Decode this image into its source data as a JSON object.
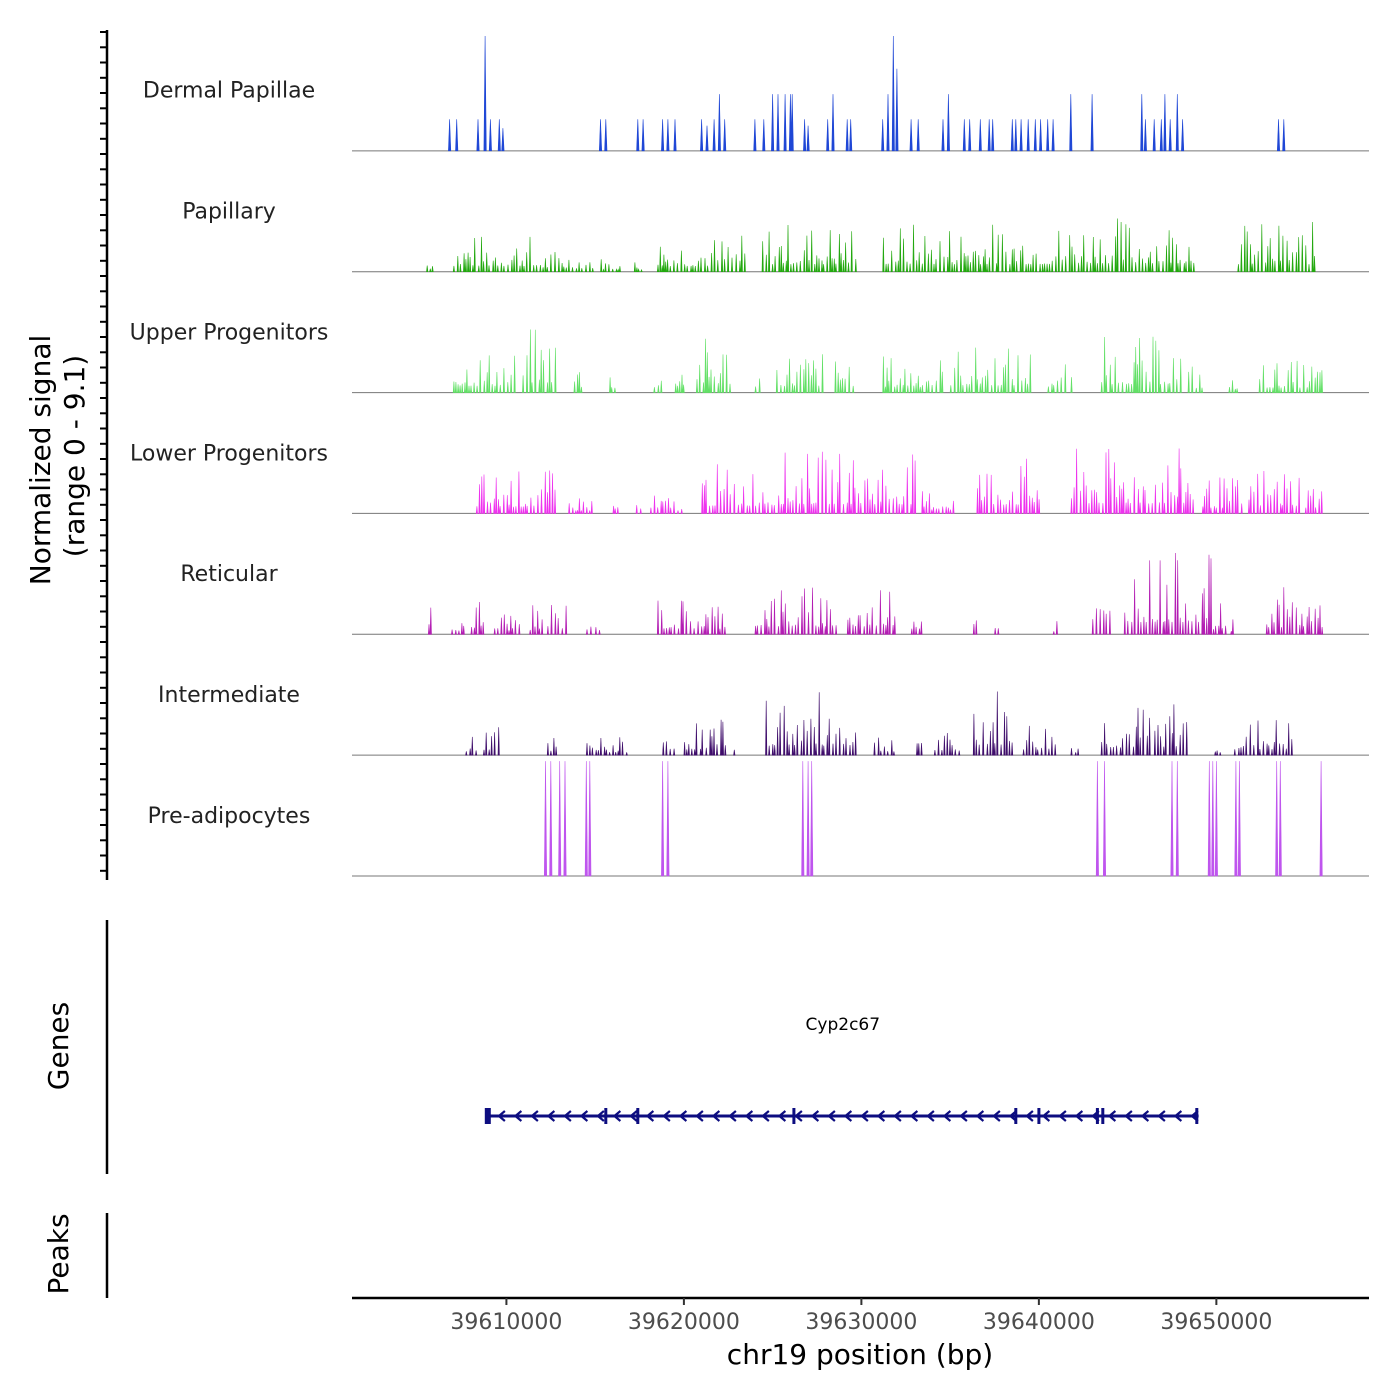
{
  "chart_data": {
    "type": "area",
    "title": "",
    "ylabel_line1": "Normalized signal",
    "ylabel_line2": "(range 0 - 9.1)",
    "y_range": [
      0,
      9.1
    ],
    "xlabel": "chr19 position (bp)",
    "x_range": [
      39601300,
      39658600
    ],
    "x_ticks": [
      39610000,
      39620000,
      39630000,
      39640000,
      39650000
    ],
    "x_tick_labels": [
      "39610000",
      "39620000",
      "39630000",
      "39640000",
      "39650000"
    ],
    "tracks": [
      {
        "name": "Dermal Papillae",
        "color": "#1f47d6",
        "peaks": [
          [
            39606800,
            2.5
          ],
          [
            39607200,
            2.5
          ],
          [
            39608400,
            2.5
          ],
          [
            39608800,
            9.1
          ],
          [
            39609100,
            2.5
          ],
          [
            39609600,
            2.5
          ],
          [
            39609800,
            1.8
          ],
          [
            39615300,
            2.5
          ],
          [
            39615600,
            2.5
          ],
          [
            39617400,
            2.5
          ],
          [
            39617700,
            2.5
          ],
          [
            39618800,
            2.5
          ],
          [
            39619100,
            2.5
          ],
          [
            39619500,
            2.5
          ],
          [
            39621000,
            2.5
          ],
          [
            39621300,
            2.0
          ],
          [
            39621700,
            2.5
          ],
          [
            39622000,
            4.5
          ],
          [
            39622300,
            2.5
          ],
          [
            39624000,
            2.5
          ],
          [
            39624500,
            2.5
          ],
          [
            39625000,
            4.5
          ],
          [
            39625300,
            4.5
          ],
          [
            39625700,
            4.5
          ],
          [
            39626000,
            4.5
          ],
          [
            39626100,
            4.5
          ],
          [
            39626800,
            2.5
          ],
          [
            39627000,
            2.0
          ],
          [
            39628100,
            2.5
          ],
          [
            39628400,
            4.5
          ],
          [
            39629200,
            2.5
          ],
          [
            39629400,
            2.5
          ],
          [
            39631200,
            2.5
          ],
          [
            39631500,
            4.5
          ],
          [
            39631800,
            9.1
          ],
          [
            39632000,
            6.5
          ],
          [
            39632800,
            2.5
          ],
          [
            39633200,
            2.5
          ],
          [
            39634600,
            2.5
          ],
          [
            39634900,
            4.5
          ],
          [
            39635800,
            2.5
          ],
          [
            39636100,
            2.5
          ],
          [
            39636700,
            2.5
          ],
          [
            39637200,
            2.5
          ],
          [
            39637400,
            2.5
          ],
          [
            39638500,
            2.5
          ],
          [
            39638700,
            2.5
          ],
          [
            39639000,
            2.5
          ],
          [
            39639400,
            2.5
          ],
          [
            39639800,
            2.5
          ],
          [
            39640100,
            2.5
          ],
          [
            39640500,
            2.5
          ],
          [
            39640800,
            2.5
          ],
          [
            39641800,
            4.5
          ],
          [
            39643000,
            4.5
          ],
          [
            39645800,
            4.5
          ],
          [
            39646000,
            2.5
          ],
          [
            39646500,
            2.5
          ],
          [
            39646900,
            2.5
          ],
          [
            39647100,
            4.5
          ],
          [
            39647400,
            2.5
          ],
          [
            39647800,
            4.5
          ],
          [
            39648100,
            2.5
          ],
          [
            39653500,
            2.5
          ],
          [
            39653800,
            2.5
          ]
        ]
      },
      {
        "name": "Papillary",
        "color": "#22a80e",
        "density": [
          [
            39605500,
            39605900,
            1.5
          ],
          [
            39607000,
            39611300,
            3.0
          ],
          [
            39611500,
            39615000,
            1.8
          ],
          [
            39615300,
            39616400,
            1.2
          ],
          [
            39617200,
            39617700,
            1.0
          ],
          [
            39618500,
            39623500,
            3.0
          ],
          [
            39624400,
            39629700,
            4.0
          ],
          [
            39631200,
            39641500,
            4.0
          ],
          [
            39641700,
            39648800,
            4.5
          ],
          [
            39651200,
            39655500,
            4.0
          ]
        ]
      },
      {
        "name": "Upper Progenitors",
        "color": "#62e066",
        "density": [
          [
            39607000,
            39610500,
            3.5
          ],
          [
            39610900,
            39612800,
            5.2
          ],
          [
            39613800,
            39614300,
            2.8
          ],
          [
            39615800,
            39616100,
            2.4
          ],
          [
            39618300,
            39618800,
            1.5
          ],
          [
            39619500,
            39620100,
            3.4
          ],
          [
            39620700,
            39622600,
            4.5
          ],
          [
            39624000,
            39624300,
            2.4
          ],
          [
            39625200,
            39627800,
            3.5
          ],
          [
            39628500,
            39629700,
            3.5
          ],
          [
            39631200,
            39634600,
            3.0
          ],
          [
            39635000,
            39639500,
            3.8
          ],
          [
            39640500,
            39641600,
            3.0
          ],
          [
            39641800,
            39642000,
            1.8
          ],
          [
            39643500,
            39648000,
            4.5
          ],
          [
            39648400,
            39649200,
            2.4
          ],
          [
            39650700,
            39651200,
            1.2
          ],
          [
            39652400,
            39655700,
            2.6
          ],
          [
            39655800,
            39656000,
            2.8
          ]
        ]
      },
      {
        "name": "Lower Progenitors",
        "color": "#ee32ee",
        "density": [
          [
            39608300,
            39612800,
            3.5
          ],
          [
            39613500,
            39614800,
            1.5
          ],
          [
            39616000,
            39616300,
            1.2
          ],
          [
            39617300,
            39617600,
            1.2
          ],
          [
            39618100,
            39620000,
            1.5
          ],
          [
            39621000,
            39625200,
            4.0
          ],
          [
            39625300,
            39629600,
            5.0
          ],
          [
            39629800,
            39633000,
            4.8
          ],
          [
            39633400,
            39635300,
            2.0
          ],
          [
            39636500,
            39640000,
            4.5
          ],
          [
            39641800,
            39648800,
            5.2
          ],
          [
            39649200,
            39651400,
            3.0
          ],
          [
            39651800,
            39654700,
            4.0
          ],
          [
            39655000,
            39656000,
            3.0
          ]
        ]
      },
      {
        "name": "Reticular",
        "color": "#b31cb3",
        "density": [
          [
            39605600,
            39605800,
            2.5
          ],
          [
            39606900,
            39607600,
            2.0
          ],
          [
            39608000,
            39608800,
            3.0
          ],
          [
            39609300,
            39610800,
            2.0
          ],
          [
            39611300,
            39612000,
            2.3
          ],
          [
            39612300,
            39613400,
            3.0
          ],
          [
            39614500,
            39614900,
            2.5
          ],
          [
            39615000,
            39615400,
            2.0
          ],
          [
            39618500,
            39622300,
            3.0
          ],
          [
            39624000,
            39628600,
            4.0
          ],
          [
            39629200,
            39630600,
            3.0
          ],
          [
            39630800,
            39632000,
            4.5
          ],
          [
            39632800,
            39633400,
            3.0
          ],
          [
            39636300,
            39636600,
            5.0
          ],
          [
            39637500,
            39637800,
            1.5
          ],
          [
            39640800,
            39641100,
            1.5
          ],
          [
            39643000,
            39644000,
            3.0
          ],
          [
            39644800,
            39649800,
            6.5
          ],
          [
            39649800,
            39650600,
            2.5
          ],
          [
            39650800,
            39651100,
            1.5
          ],
          [
            39652800,
            39656000,
            3.8
          ]
        ]
      },
      {
        "name": "Intermediate",
        "color": "#3f0d6b",
        "density": [
          [
            39607700,
            39608400,
            1.5
          ],
          [
            39608700,
            39609700,
            2.8
          ],
          [
            39612300,
            39612800,
            1.5
          ],
          [
            39614500,
            39616800,
            1.5
          ],
          [
            39618800,
            39619500,
            1.5
          ],
          [
            39620000,
            39622300,
            3.0
          ],
          [
            39622800,
            39623000,
            2.8
          ],
          [
            39624600,
            39629700,
            5.0
          ],
          [
            39630700,
            39632000,
            2.0
          ],
          [
            39633100,
            39633400,
            2.8
          ],
          [
            39634100,
            39635500,
            1.8
          ],
          [
            39636300,
            39638600,
            5.5
          ],
          [
            39639100,
            39641000,
            2.8
          ],
          [
            39641800,
            39642200,
            1.5
          ],
          [
            39643500,
            39646300,
            4.0
          ],
          [
            39646500,
            39648400,
            4.5
          ],
          [
            39649900,
            39650200,
            1.5
          ],
          [
            39651000,
            39654400,
            3.0
          ]
        ]
      },
      {
        "name": "Pre-adipocytes",
        "color": "#bf55ee",
        "peaks": [
          [
            39612200,
            9.1
          ],
          [
            39612500,
            9.1
          ],
          [
            39613000,
            9.1
          ],
          [
            39613300,
            9.1
          ],
          [
            39614500,
            9.1
          ],
          [
            39614700,
            9.1
          ],
          [
            39618800,
            9.1
          ],
          [
            39619100,
            9.1
          ],
          [
            39626700,
            9.1
          ],
          [
            39627000,
            9.1
          ],
          [
            39627200,
            9.1
          ],
          [
            39643300,
            9.1
          ],
          [
            39643700,
            9.1
          ],
          [
            39647500,
            9.1
          ],
          [
            39647800,
            9.1
          ],
          [
            39649600,
            9.1
          ],
          [
            39649800,
            9.1
          ],
          [
            39650000,
            9.1
          ],
          [
            39651100,
            9.1
          ],
          [
            39651300,
            9.1
          ],
          [
            39653400,
            9.1
          ],
          [
            39653600,
            9.1
          ],
          [
            39655900,
            9.1
          ]
        ]
      }
    ],
    "genes_label": "Genes",
    "genes": [
      {
        "name": "Cyp2c67",
        "start": 39608900,
        "end": 39649000,
        "strand": "-",
        "color": "#0d0d80",
        "exons": [
          39608950,
          39615600,
          39617400,
          39626200,
          39638700,
          39640000,
          39643300,
          39643600,
          39648900
        ]
      }
    ],
    "peaks_label": "Peaks",
    "peak_regions": []
  }
}
